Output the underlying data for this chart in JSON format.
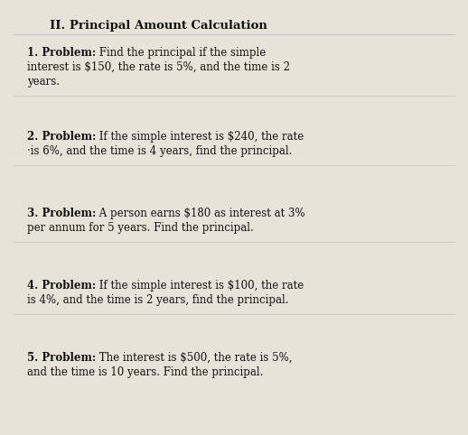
{
  "title": "II. Principal Amount Calculation",
  "background_color": "#e8e3d8",
  "text_color": "#111111",
  "problems": [
    {
      "label": "1. Problem:",
      "line1": " Find the principal if the simple",
      "line2": "interest is $150, the rate is 5%, and the time is 2",
      "line3": "years."
    },
    {
      "label": "2. Problem:",
      "line1": " If the simple interest is $240, the rate",
      "line2": "·is 6%, and the time is 4 years, find the principal.",
      "line3": ""
    },
    {
      "label": "3. Problem:",
      "line1": " A person earns $180 as interest at 3%",
      "line2": "per annum for 5 years. Find the principal.",
      "line3": ""
    },
    {
      "label": "4. Problem:",
      "line1": " If the simple interest is $100, the rate",
      "line2": "is 4%, and the time is 2 years, find the principal.",
      "line3": ""
    },
    {
      "label": "5. Problem:",
      "line1": " The interest is $500, the rate is 5%,",
      "line2": "and the time is 10 years. Find the principal.",
      "line3": ""
    }
  ],
  "title_fontsize": 9.5,
  "body_fontsize": 8.5,
  "figsize": [
    5.18,
    4.82
  ],
  "dpi": 100
}
